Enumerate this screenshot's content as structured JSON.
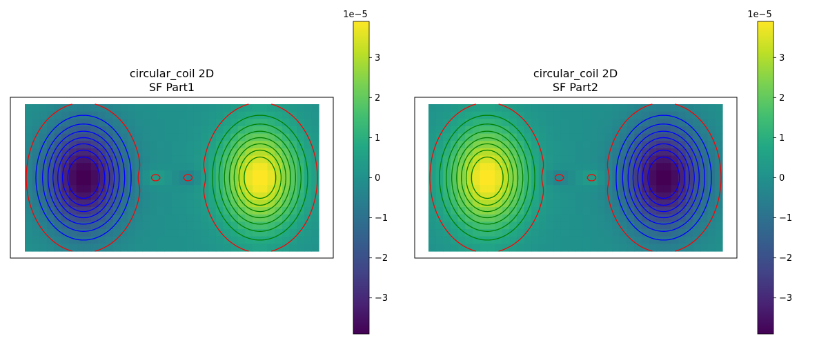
{
  "chart_data": [
    {
      "type": "heatmap",
      "title_line1": "circular_coil 2D",
      "title_line2": "SF Part1",
      "xlabel": "",
      "ylabel": "",
      "axes_ticks_visible": false,
      "field": "part1",
      "colormap": "viridis",
      "colorbar": {
        "multiplier_label": "1e−5",
        "ticks": [
          3,
          2,
          1,
          0,
          -1,
          -2,
          -3
        ],
        "tick_labels": [
          "3",
          "2",
          "1",
          "0",
          "−1",
          "−2",
          "−3"
        ],
        "range": [
          -3.9,
          3.9
        ]
      },
      "lobes": [
        {
          "sign": "negative",
          "location": "left",
          "peak": -3.8
        },
        {
          "sign": "positive",
          "location": "right",
          "peak": 3.8
        }
      ],
      "contour_colors": {
        "negative": "#0000ff",
        "positive": "#008000",
        "center": "#ff0000"
      }
    },
    {
      "type": "heatmap",
      "title_line1": "circular_coil 2D",
      "title_line2": "SF Part2",
      "xlabel": "",
      "ylabel": "",
      "axes_ticks_visible": false,
      "field": "part2",
      "colormap": "viridis",
      "colorbar": {
        "multiplier_label": "1e−5",
        "ticks": [
          3,
          2,
          1,
          0,
          -1,
          -2,
          -3
        ],
        "tick_labels": [
          "3",
          "2",
          "1",
          "0",
          "−1",
          "−2",
          "−3"
        ],
        "range": [
          -3.9,
          3.9
        ]
      },
      "lobes": [
        {
          "sign": "positive",
          "location": "left",
          "peak": 3.8
        },
        {
          "sign": "negative",
          "location": "right",
          "peak": -3.8
        }
      ],
      "contour_colors": {
        "negative": "#0000ff",
        "positive": "#008000",
        "center": "#ff0000"
      }
    }
  ]
}
